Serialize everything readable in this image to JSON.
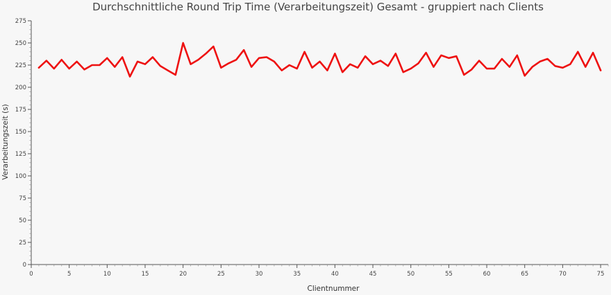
{
  "chart_data": {
    "type": "line",
    "title": "Durchschnittliche Round Trip Time (Verarbeitungszeit) Gesamt - gruppiert nach Clients",
    "xlabel": "Clientnummer",
    "ylabel": "Verarbeitungszeit (s)",
    "xlim": [
      0,
      76
    ],
    "ylim": [
      0,
      275
    ],
    "x_ticks": [
      0,
      5,
      10,
      15,
      20,
      25,
      30,
      35,
      40,
      45,
      50,
      55,
      60,
      65,
      70,
      75
    ],
    "y_ticks": [
      0,
      25,
      50,
      75,
      100,
      125,
      150,
      175,
      200,
      225,
      250,
      275
    ],
    "grid": false,
    "series": [
      {
        "color": "#ee1111",
        "x": [
          1,
          2,
          3,
          4,
          5,
          6,
          7,
          8,
          9,
          10,
          11,
          12,
          13,
          14,
          15,
          16,
          17,
          18,
          19,
          20,
          21,
          22,
          23,
          24,
          25,
          26,
          27,
          28,
          29,
          30,
          31,
          32,
          33,
          34,
          35,
          36,
          37,
          38,
          39,
          40,
          41,
          42,
          43,
          44,
          45,
          46,
          47,
          48,
          49,
          50,
          51,
          52,
          53,
          54,
          55,
          56,
          57,
          58,
          59,
          60,
          61,
          62,
          63,
          64,
          65,
          66,
          67,
          68,
          69,
          70,
          71,
          72,
          73,
          74,
          75
        ],
        "values": [
          222,
          230,
          221,
          231,
          221,
          229,
          220,
          225,
          225,
          233,
          223,
          234,
          212,
          229,
          226,
          234,
          224,
          219,
          214,
          250,
          226,
          231,
          238,
          246,
          222,
          227,
          231,
          242,
          223,
          233,
          234,
          229,
          219,
          225,
          221,
          240,
          222,
          229,
          219,
          238,
          217,
          226,
          222,
          235,
          226,
          230,
          224,
          238,
          217,
          221,
          227,
          239,
          223,
          236,
          233,
          235,
          214,
          220,
          230,
          221,
          221,
          232,
          223,
          236,
          213,
          223,
          229,
          232,
          224,
          222,
          226,
          240,
          223,
          239,
          219
        ]
      }
    ]
  }
}
